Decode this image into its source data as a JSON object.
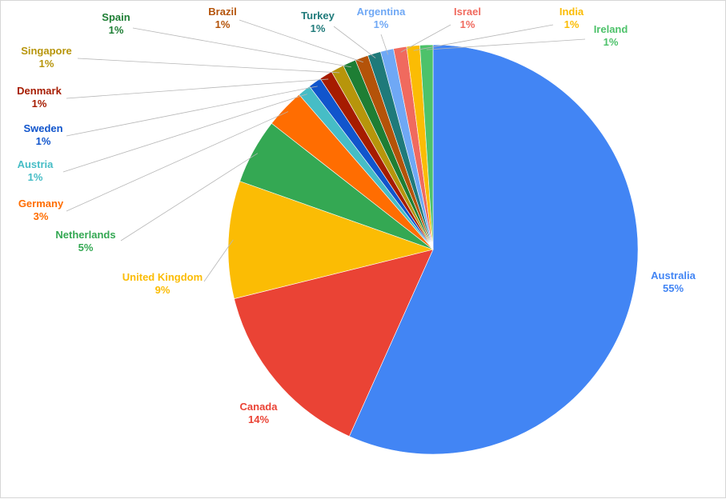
{
  "chart_data": {
    "type": "pie",
    "title": "",
    "legend": "none",
    "slices": [
      {
        "label": "Australia",
        "value": 55,
        "value_label": "55%",
        "color": "#4285f4"
      },
      {
        "label": "Canada",
        "value": 14,
        "value_label": "14%",
        "color": "#ea4335"
      },
      {
        "label": "United Kingdom",
        "value": 9,
        "value_label": "9%",
        "color": "#fbbc04"
      },
      {
        "label": "Netherlands",
        "value": 5,
        "value_label": "5%",
        "color": "#34a853"
      },
      {
        "label": "Germany",
        "value": 3,
        "value_label": "3%",
        "color": "#ff6d01"
      },
      {
        "label": "Austria",
        "value": 1,
        "value_label": "1%",
        "color": "#46bdc6"
      },
      {
        "label": "Sweden",
        "value": 1,
        "value_label": "1%",
        "color": "#1155cc"
      },
      {
        "label": "Denmark",
        "value": 1,
        "value_label": "1%",
        "color": "#a61c00"
      },
      {
        "label": "Singapore",
        "value": 1,
        "value_label": "1%",
        "color": "#b7950b"
      },
      {
        "label": "Spain",
        "value": 1,
        "value_label": "1%",
        "color": "#1e7e34"
      },
      {
        "label": "Brazil",
        "value": 1,
        "value_label": "1%",
        "color": "#b45309"
      },
      {
        "label": "Turkey",
        "value": 1,
        "value_label": "1%",
        "color": "#1f7a7a"
      },
      {
        "label": "Argentina",
        "value": 1,
        "value_label": "1%",
        "color": "#6fa8f5"
      },
      {
        "label": "Israel",
        "value": 1,
        "value_label": "1%",
        "color": "#f06a5e"
      },
      {
        "label": "India",
        "value": 1,
        "value_label": "1%",
        "color": "#fbbc04"
      },
      {
        "label": "Ireland",
        "value": 1,
        "value_label": "1%",
        "color": "#4dc26a"
      }
    ]
  }
}
